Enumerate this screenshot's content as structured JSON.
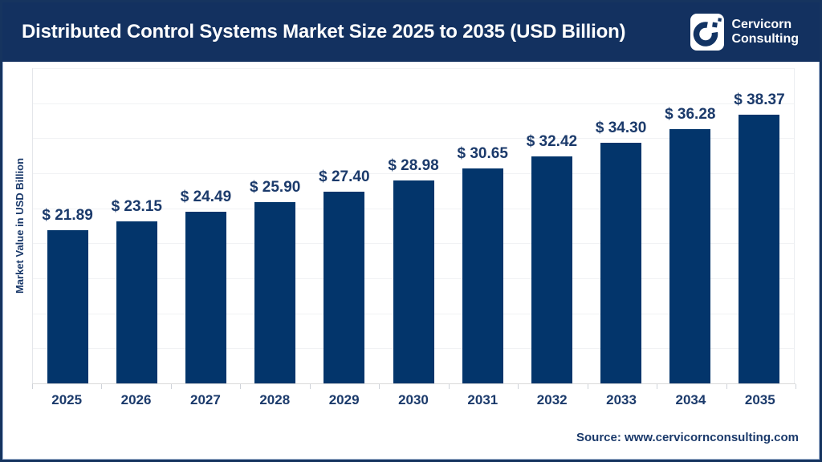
{
  "header": {
    "title": "Distributed Control Systems Market Size 2025 to 2035 (USD Billion)",
    "logo": {
      "icon": "cervicorn-c-logo",
      "line1": "Cervicorn",
      "line2": "Consulting"
    }
  },
  "chart_data": {
    "type": "bar",
    "title": "Distributed Control Systems Market Size 2025 to 2035 (USD Billion)",
    "categories": [
      "2025",
      "2026",
      "2027",
      "2028",
      "2029",
      "2030",
      "2031",
      "2032",
      "2033",
      "2034",
      "2035"
    ],
    "values": [
      21.89,
      23.15,
      24.49,
      25.9,
      27.4,
      28.98,
      30.65,
      32.42,
      34.3,
      36.28,
      38.37
    ],
    "value_labels": [
      "$ 21.89",
      "$ 23.15",
      "$ 24.49",
      "$ 25.90",
      "$ 27.40",
      "$ 28.98",
      "$ 30.65",
      "$ 32.42",
      "$ 34.30",
      "$ 36.28",
      "$ 38.37"
    ],
    "xlabel": "",
    "ylabel": "Market Value in USD Billion",
    "ylim": [
      0,
      45
    ],
    "gridline_step": 5,
    "grid": true,
    "legend": false
  },
  "footer": {
    "source": "Source: www.cervicornconsulting.com"
  },
  "colors": {
    "frame_border": "#16345f",
    "header_bg": "#133160",
    "bar": "#03356b",
    "navy_text": "#1b3a6b",
    "axis_line": "#d9d9d9",
    "gridline": "#f1f2f4",
    "white": "#ffffff"
  }
}
